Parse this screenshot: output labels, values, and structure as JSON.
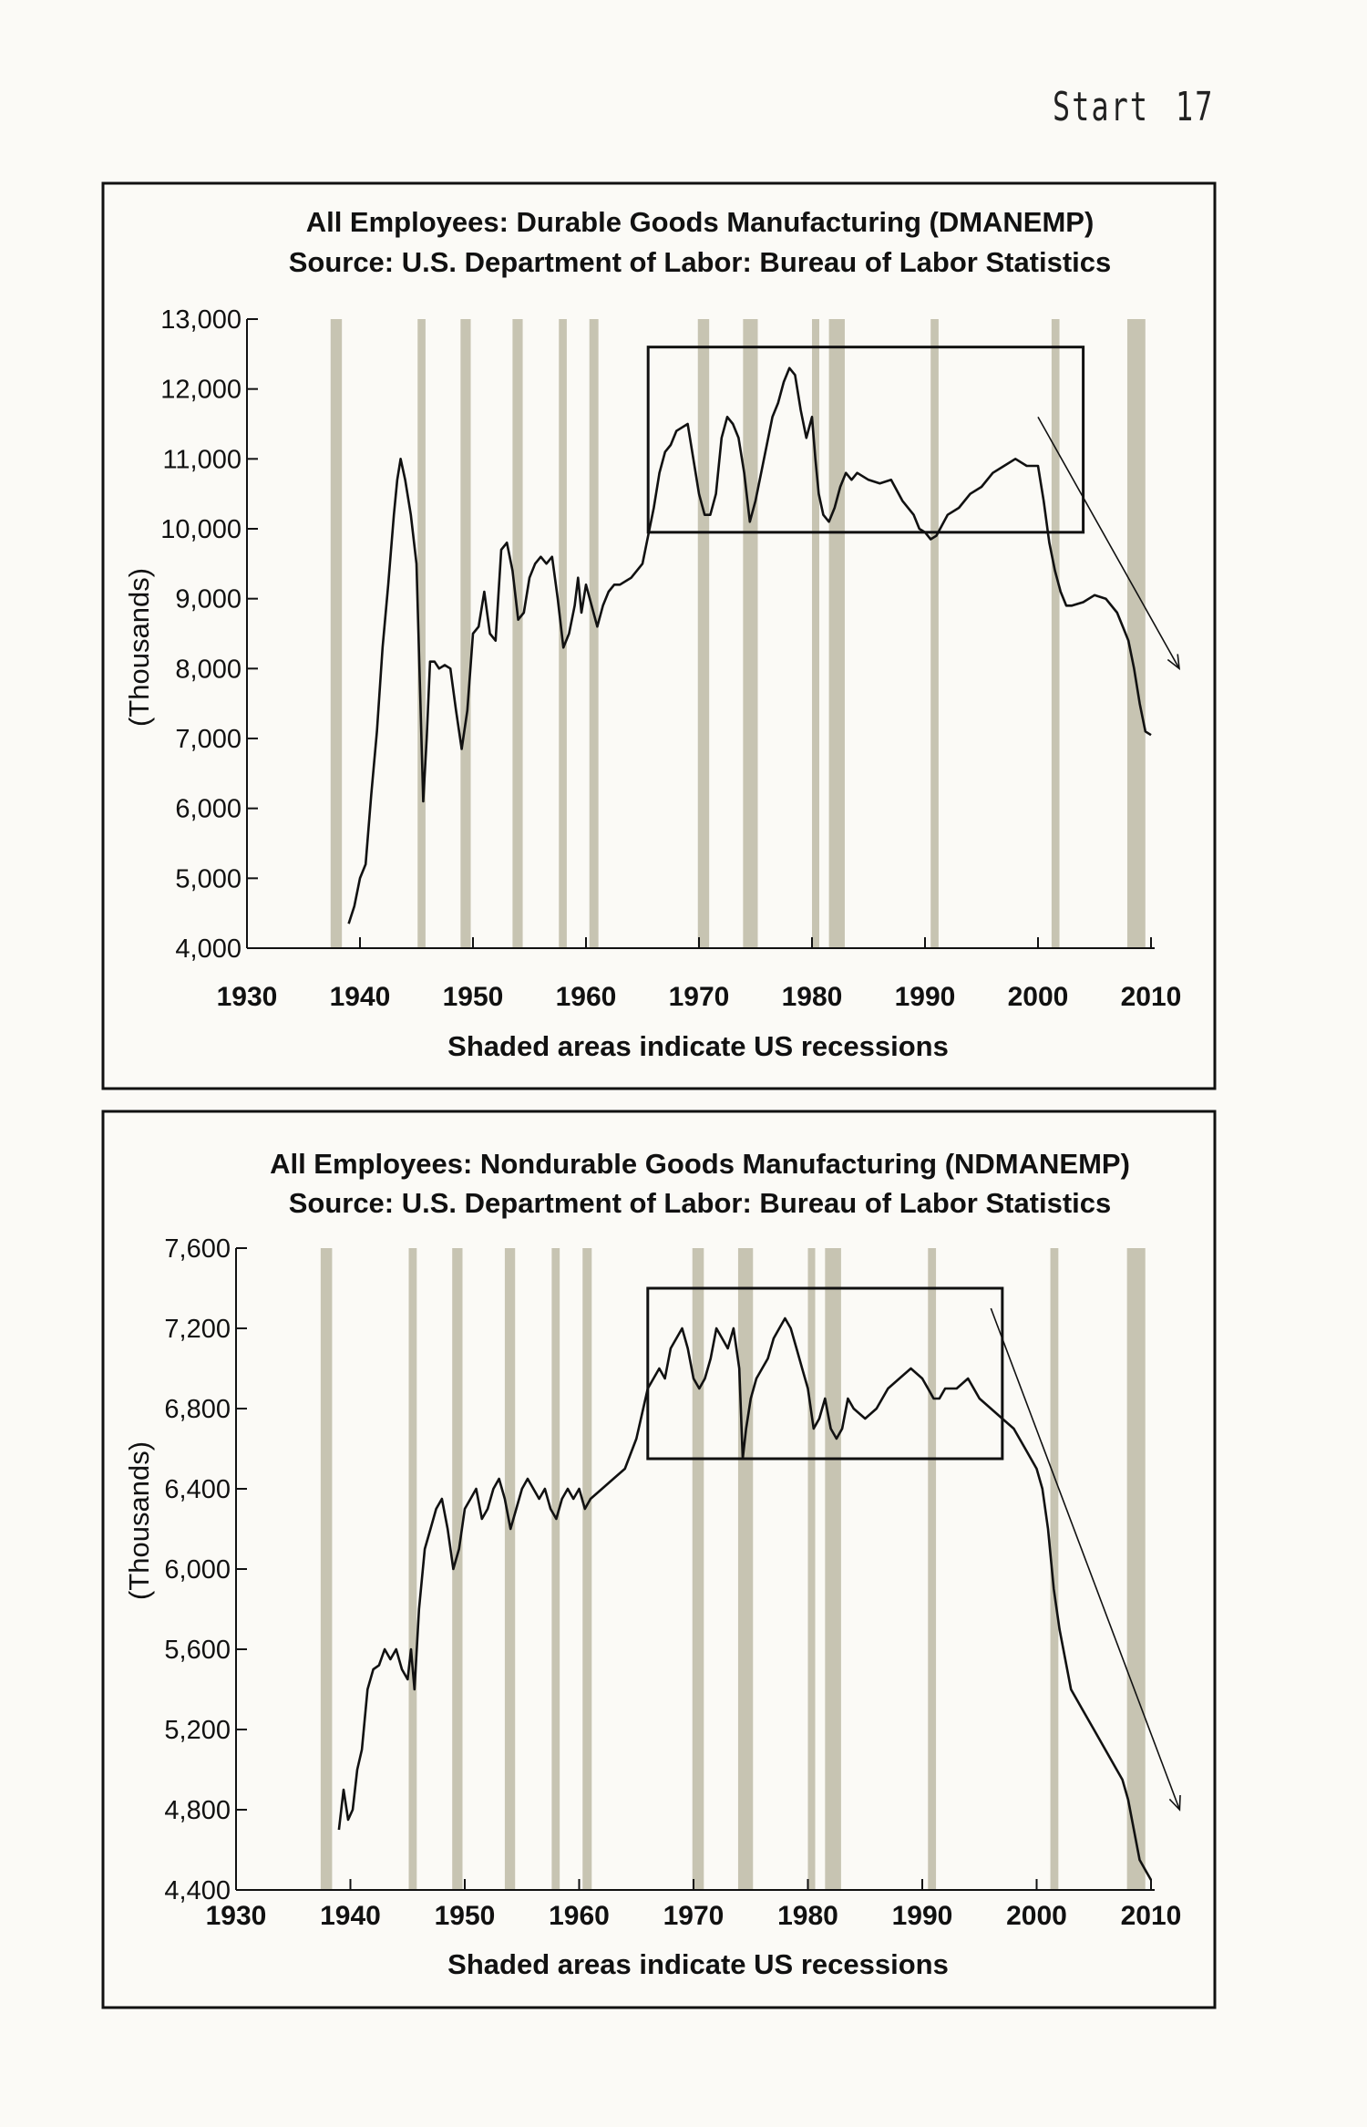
{
  "page_header": {
    "section": "Start",
    "page_number": "17"
  },
  "colors": {
    "recession": "#c7c4b2",
    "line": "#111111",
    "frame": "#111111"
  },
  "chart_data": [
    {
      "type": "line",
      "title": "All Employees: Durable Goods Manufacturing (DMANEMP)",
      "subtitle": "Source: U.S. Department of Labor: Bureau of Labor Statistics",
      "ylabel": "(Thousands)",
      "xlabel": "Shaded areas indicate US recessions",
      "xlim": [
        1930,
        2010
      ],
      "ylim": [
        4000,
        13000
      ],
      "xticks": [
        "1930",
        "1940",
        "1950",
        "1960",
        "1970",
        "1980",
        "1990",
        "2000",
        "2010"
      ],
      "yticks": [
        "13,000",
        "12,000",
        "11,000",
        "10,000",
        "9,000",
        "8,000",
        "7,000",
        "6,000",
        "5,000",
        "4,000"
      ],
      "recessions": [
        [
          1937.4,
          1938.4
        ],
        [
          1945.1,
          1945.8
        ],
        [
          1948.9,
          1949.8
        ],
        [
          1953.5,
          1954.4
        ],
        [
          1957.6,
          1958.3
        ],
        [
          1960.3,
          1961.1
        ],
        [
          1969.9,
          1970.9
        ],
        [
          1973.9,
          1975.2
        ],
        [
          1980.0,
          1980.5
        ],
        [
          1981.5,
          1982.9
        ],
        [
          1990.5,
          1991.2
        ],
        [
          2001.2,
          2001.9
        ],
        [
          2007.9,
          2009.5
        ]
      ],
      "highlight_box": {
        "x": [
          1965.5,
          2004.0
        ],
        "y": [
          9950,
          12600
        ]
      },
      "trend_arrow": {
        "from": [
          2000.0,
          11600
        ],
        "to": [
          2012.5,
          8000
        ]
      },
      "series": [
        {
          "x": [
            1939.0,
            1939.5,
            1940.0,
            1940.5,
            1941.0,
            1941.5,
            1942.0,
            1942.5,
            1943.0,
            1943.3,
            1943.6,
            1944.0,
            1944.5,
            1945.0,
            1945.3,
            1945.6,
            1945.9,
            1946.2,
            1946.6,
            1947.0,
            1947.5,
            1948.0,
            1948.5,
            1949.0,
            1949.5,
            1950.0,
            1950.5,
            1951.0,
            1951.5,
            1952.0,
            1952.5,
            1953.0,
            1953.5,
            1954.0,
            1954.5,
            1955.0,
            1955.5,
            1956.0,
            1956.5,
            1957.0,
            1957.5,
            1958.0,
            1958.5,
            1959.0,
            1959.3,
            1959.6,
            1960.0,
            1960.5,
            1961.0,
            1961.5,
            1962.0,
            1962.5,
            1963.0,
            1964.0,
            1965.0,
            1966.0,
            1966.5,
            1967.0,
            1967.5,
            1968.0,
            1969.0,
            1969.5,
            1970.0,
            1970.5,
            1971.0,
            1971.5,
            1972.0,
            1972.5,
            1973.0,
            1973.5,
            1974.0,
            1974.5,
            1975.0,
            1975.5,
            1976.0,
            1976.5,
            1977.0,
            1977.5,
            1978.0,
            1978.5,
            1979.0,
            1979.5,
            1980.0,
            1980.3,
            1980.6,
            1981.0,
            1981.5,
            1982.0,
            1982.5,
            1983.0,
            1983.5,
            1984.0,
            1985.0,
            1986.0,
            1987.0,
            1988.0,
            1989.0,
            1989.5,
            1990.0,
            1990.5,
            1991.0,
            1991.5,
            1992.0,
            1993.0,
            1994.0,
            1995.0,
            1996.0,
            1997.0,
            1998.0,
            1999.0,
            2000.0,
            2000.5,
            2001.0,
            2001.5,
            2002.0,
            2002.5,
            2003.0,
            2004.0,
            2005.0,
            2006.0,
            2007.0,
            2007.5,
            2008.0,
            2008.5,
            2009.0,
            2009.5,
            2010.0
          ],
          "y": [
            4350,
            4600,
            5000,
            5200,
            6200,
            7100,
            8300,
            9200,
            10200,
            10700,
            11000,
            10700,
            10200,
            9500,
            7800,
            6100,
            7000,
            8100,
            8100,
            8000,
            8050,
            8000,
            7400,
            6850,
            7400,
            8500,
            8600,
            9100,
            8500,
            8400,
            9700,
            9800,
            9400,
            8700,
            8800,
            9300,
            9500,
            9600,
            9500,
            9600,
            9000,
            8300,
            8500,
            8900,
            9300,
            8800,
            9200,
            8900,
            8600,
            8900,
            9100,
            9200,
            9200,
            9300,
            9500,
            10300,
            10800,
            11100,
            11200,
            11400,
            11500,
            11000,
            10500,
            10200,
            10200,
            10500,
            11300,
            11600,
            11500,
            11300,
            10800,
            10100,
            10400,
            10800,
            11200,
            11600,
            11800,
            12100,
            12300,
            12200,
            11700,
            11300,
            11600,
            11000,
            10500,
            10200,
            10100,
            10300,
            10600,
            10800,
            10700,
            10800,
            10700,
            10650,
            10700,
            10400,
            10200,
            10000,
            9950,
            9850,
            9900,
            10050,
            10200,
            10300,
            10500,
            10600,
            10800,
            10900,
            11000,
            10900,
            10900,
            10400,
            9800,
            9400,
            9100,
            8900,
            8900,
            8950,
            9050,
            9000,
            8800,
            8600,
            8400,
            8000,
            7500,
            7100,
            7050
          ]
        }
      ]
    },
    {
      "type": "line",
      "title": "All Employees: Nondurable Goods Manufacturing (NDMANEMP)",
      "subtitle": "Source: U.S. Department of Labor: Bureau of Labor Statistics",
      "ylabel": "(Thousands)",
      "xlabel": "Shaded areas indicate US recessions",
      "xlim": [
        1930,
        2010
      ],
      "ylim": [
        4400,
        7600
      ],
      "xticks": [
        "1930",
        "1940",
        "1950",
        "1960",
        "1970",
        "1980",
        "1990",
        "2000",
        "2010"
      ],
      "yticks": [
        "7,600",
        "7,200",
        "6,800",
        "6,400",
        "6,000",
        "5,600",
        "5,200",
        "4,800",
        "4,400"
      ],
      "recessions": [
        [
          1937.4,
          1938.4
        ],
        [
          1945.1,
          1945.8
        ],
        [
          1948.9,
          1949.8
        ],
        [
          1953.5,
          1954.4
        ],
        [
          1957.6,
          1958.3
        ],
        [
          1960.3,
          1961.1
        ],
        [
          1969.9,
          1970.9
        ],
        [
          1973.9,
          1975.2
        ],
        [
          1980.0,
          1980.5
        ],
        [
          1981.5,
          1982.9
        ],
        [
          1990.5,
          1991.2
        ],
        [
          2001.2,
          2001.9
        ],
        [
          2007.9,
          2009.5
        ]
      ],
      "highlight_box": {
        "x": [
          1966.0,
          1997.0
        ],
        "y": [
          6550,
          7400
        ]
      },
      "trend_arrow": {
        "from": [
          1996.0,
          7300
        ],
        "to": [
          2012.5,
          4800
        ]
      },
      "series": [
        {
          "x": [
            1939.0,
            1939.4,
            1939.8,
            1940.2,
            1940.6,
            1941.0,
            1941.5,
            1942.0,
            1942.5,
            1943.0,
            1943.5,
            1944.0,
            1944.5,
            1945.0,
            1945.3,
            1945.6,
            1946.0,
            1946.5,
            1947.0,
            1947.5,
            1948.0,
            1948.5,
            1949.0,
            1949.5,
            1950.0,
            1950.5,
            1951.0,
            1951.5,
            1952.0,
            1952.5,
            1953.0,
            1953.5,
            1954.0,
            1954.5,
            1955.0,
            1955.5,
            1956.0,
            1956.5,
            1957.0,
            1957.5,
            1958.0,
            1958.5,
            1959.0,
            1959.5,
            1960.0,
            1960.5,
            1961.0,
            1962.0,
            1963.0,
            1964.0,
            1965.0,
            1966.0,
            1966.5,
            1967.0,
            1967.5,
            1968.0,
            1969.0,
            1969.5,
            1970.0,
            1970.5,
            1971.0,
            1971.5,
            1972.0,
            1972.5,
            1973.0,
            1973.5,
            1974.0,
            1974.3,
            1974.6,
            1975.0,
            1975.5,
            1976.0,
            1976.5,
            1977.0,
            1977.5,
            1978.0,
            1978.5,
            1979.0,
            1979.5,
            1980.0,
            1980.5,
            1981.0,
            1981.5,
            1982.0,
            1982.5,
            1983.0,
            1983.5,
            1984.0,
            1985.0,
            1986.0,
            1987.0,
            1988.0,
            1989.0,
            1990.0,
            1990.5,
            1991.0,
            1991.5,
            1992.0,
            1993.0,
            1994.0,
            1995.0,
            1996.0,
            1997.0,
            1998.0,
            1999.0,
            2000.0,
            2000.5,
            2001.0,
            2001.5,
            2002.0,
            2002.5,
            2003.0,
            2004.0,
            2005.0,
            2006.0,
            2007.0,
            2007.5,
            2008.0,
            2008.5,
            2009.0,
            2009.5,
            2010.0
          ],
          "y": [
            4700,
            4900,
            4750,
            4800,
            5000,
            5100,
            5400,
            5500,
            5520,
            5600,
            5550,
            5600,
            5500,
            5450,
            5600,
            5400,
            5800,
            6100,
            6200,
            6300,
            6350,
            6200,
            6000,
            6100,
            6300,
            6350,
            6400,
            6250,
            6300,
            6400,
            6450,
            6350,
            6200,
            6300,
            6400,
            6450,
            6400,
            6350,
            6400,
            6300,
            6250,
            6350,
            6400,
            6350,
            6400,
            6300,
            6350,
            6400,
            6450,
            6500,
            6650,
            6900,
            6950,
            7000,
            6950,
            7100,
            7200,
            7100,
            6950,
            6900,
            6950,
            7050,
            7200,
            7150,
            7100,
            7200,
            7000,
            6550,
            6700,
            6850,
            6950,
            7000,
            7050,
            7150,
            7200,
            7250,
            7200,
            7100,
            7000,
            6900,
            6700,
            6750,
            6850,
            6700,
            6650,
            6700,
            6850,
            6800,
            6750,
            6800,
            6900,
            6950,
            7000,
            6950,
            6900,
            6850,
            6850,
            6900,
            6900,
            6950,
            6850,
            6800,
            6750,
            6700,
            6600,
            6500,
            6400,
            6200,
            5900,
            5700,
            5550,
            5400,
            5300,
            5200,
            5100,
            5000,
            4950,
            4850,
            4700,
            4550,
            4500,
            4450
          ]
        }
      ]
    }
  ]
}
